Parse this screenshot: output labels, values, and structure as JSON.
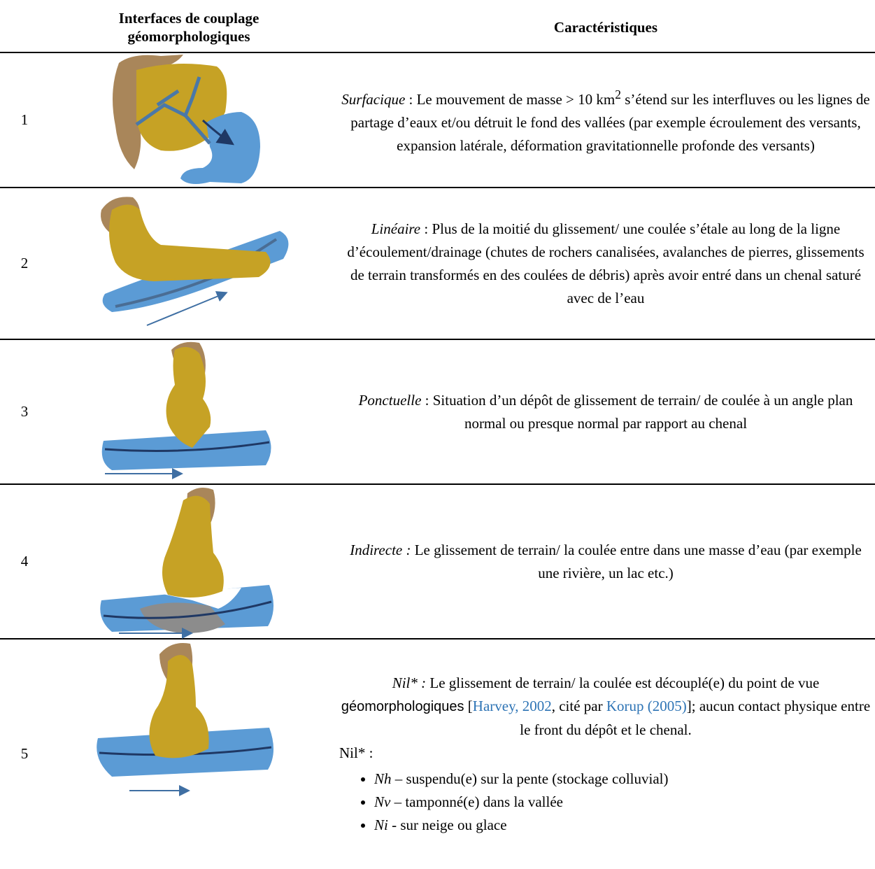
{
  "table": {
    "headers": [
      "Interfaces de couplage géomorphologiques",
      "Caractéristiques"
    ],
    "rows": [
      {
        "number": "1",
        "term": "Surfacique",
        "parts": [
          " : Le mouvement de masse > 10 km",
          "2",
          " s’étend sur les interfluves ou les lignes de partage d’eaux et/ou détruit le fond des vallées (par exemple écroulement des versants, expansion latérale, déformation gravitationnelle profonde des versants)"
        ]
      },
      {
        "number": "2",
        "term": "Linéaire",
        "parts": [
          " : Plus de la moitié du glissement/ une coulée s’étale au long de la ligne d’écoulement/drainage (chutes de rochers canalisées, avalanches de pierres, glissements de terrain transformés en des coulées de débris) après avoir entré dans un chenal saturé avec de l’eau"
        ]
      },
      {
        "number": "3",
        "term": "Ponctuelle",
        "parts": [
          " : Situation d’un dépôt de glissement de terrain/ de coulée à un angle plan normal ou presque normal par rapport au chenal"
        ]
      },
      {
        "number": "4",
        "term": "Indirecte :",
        "parts": [
          " Le glissement de terrain/ la coulée entre dans une masse d’eau (par exemple une rivière, un lac etc.)"
        ]
      },
      {
        "number": "5",
        "term": "Nil* :",
        "parts": [
          " Le glissement de terrain/ la coulée est découplé(e) du point de vue ",
          "géomorphologiques",
          " [",
          "Harvey, 2002",
          ", cité par ",
          "Korup (2005)",
          "]; aucun contact physique entre le front du dépôt et le chenal."
        ],
        "note": "Nil* :",
        "bullets": [
          {
            "term": "Nh",
            "text": " – suspendu(e) sur la pente (stockage colluvial)"
          },
          {
            "term": "Nv",
            "text": " – tamponné(e) dans la vallée"
          },
          {
            "term": "Ni",
            "text": " - sur neige ou glace"
          }
        ]
      }
    ]
  }
}
